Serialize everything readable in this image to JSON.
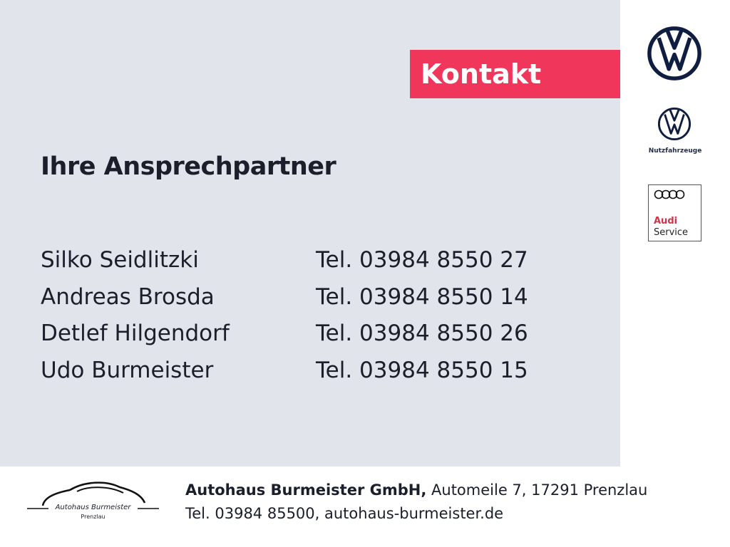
{
  "banner": {
    "label": "Kontakt",
    "color": "#f0365b"
  },
  "heading": "Ihre Ansprechpartner",
  "contacts": [
    {
      "name": "Silko Seidlitzki",
      "tel": "Tel. 03984 8550 27"
    },
    {
      "name": "Andreas Brosda",
      "tel": "Tel. 03984 8550 14"
    },
    {
      "name": "Detlef Hilgendorf",
      "tel": "Tel. 03984 8550 26"
    },
    {
      "name": "Udo Burmeister",
      "tel": "Tel. 03984 8550 15"
    }
  ],
  "logos": {
    "vw": "vw-logo",
    "vw_nfz_label": "Nutzfahrzeuge",
    "audi_line1": "Audi",
    "audi_line2": "Service"
  },
  "footer": {
    "logo_line1": "Autohaus Burmeister",
    "logo_line2": "Prenzlau",
    "company": "Autohaus Burmeister GmbH,",
    "address": " Automeile 7, 17291 Prenzlau",
    "contact": "Tel. 03984 85500, autohaus-burmeister.de"
  }
}
